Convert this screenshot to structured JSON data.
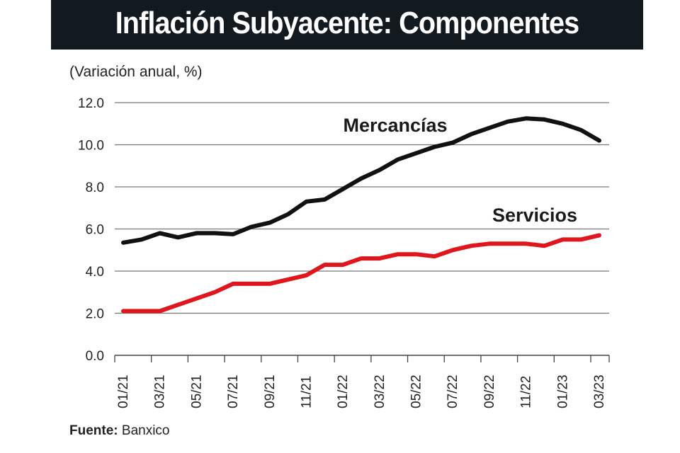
{
  "chart_data": {
    "type": "line",
    "title": "Inflación Subyacente: Componentes",
    "subtitle": "(Variación anual, %)",
    "source_label": "Fuente:",
    "source": "Banxico",
    "x": [
      "01/21",
      "02/21",
      "03/21",
      "04/21",
      "05/21",
      "06/21",
      "07/21",
      "08/21",
      "09/21",
      "10/21",
      "11/21",
      "12/21",
      "01/22",
      "02/22",
      "03/22",
      "04/22",
      "05/22",
      "06/22",
      "07/22",
      "08/22",
      "09/22",
      "10/22",
      "11/22",
      "12/22",
      "01/23",
      "02/23",
      "03/23"
    ],
    "x_tick_labels": [
      "01/21",
      "03/21",
      "05/21",
      "07/21",
      "09/21",
      "11/21",
      "01/22",
      "03/22",
      "05/22",
      "07/22",
      "09/22",
      "11/22",
      "01/23",
      "03/23"
    ],
    "y_ticks": [
      "0.0",
      "2.0",
      "4.0",
      "6.0",
      "8.0",
      "10.0",
      "12.0"
    ],
    "ylim": [
      0,
      12
    ],
    "grid": "horizontal",
    "series": [
      {
        "name": "Mercancías",
        "color": "#111111",
        "values": [
          5.35,
          5.5,
          5.8,
          5.6,
          5.8,
          5.8,
          5.75,
          6.1,
          6.3,
          6.7,
          7.3,
          7.4,
          7.9,
          8.4,
          8.8,
          9.3,
          9.6,
          9.9,
          10.1,
          10.5,
          10.8,
          11.1,
          11.25,
          11.2,
          11.0,
          10.7,
          10.2
        ]
      },
      {
        "name": "Servicios",
        "color": "#e0161e",
        "values": [
          2.1,
          2.1,
          2.1,
          2.4,
          2.7,
          3.0,
          3.4,
          3.4,
          3.4,
          3.6,
          3.8,
          4.3,
          4.3,
          4.6,
          4.6,
          4.8,
          4.8,
          4.7,
          5.0,
          5.2,
          5.3,
          5.3,
          5.3,
          5.2,
          5.5,
          5.5,
          5.7
        ]
      }
    ]
  }
}
